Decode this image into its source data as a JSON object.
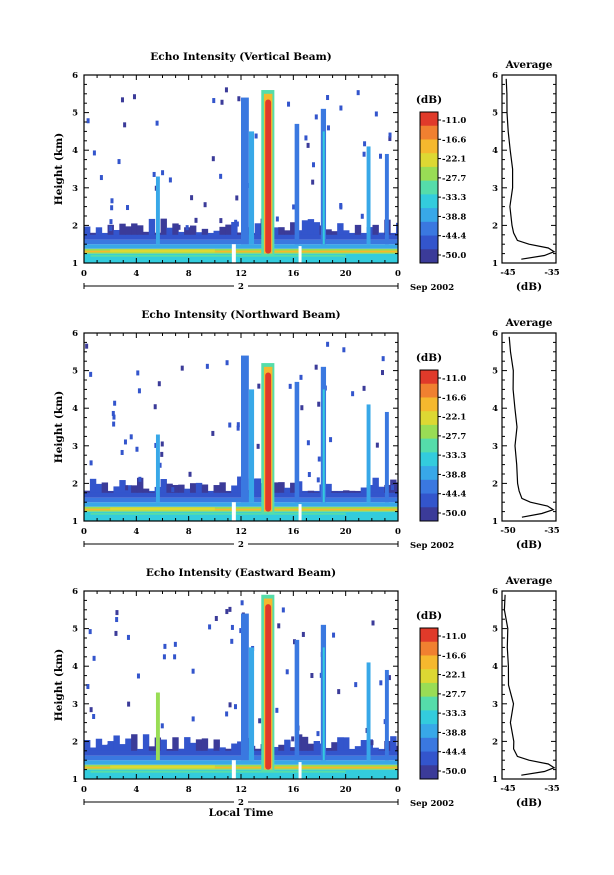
{
  "chart_data": [
    {
      "type": "heatmap",
      "title": "Echo Intensity (Vertical Beam)",
      "ylabel": "Height (km)",
      "xlabel": "",
      "x_ticks": [
        "0",
        "4",
        "8",
        "12",
        "16",
        "20",
        "0"
      ],
      "y_ticks": [
        "1",
        "2",
        "3",
        "4",
        "5",
        "6"
      ],
      "xlim": [
        0,
        24
      ],
      "ylim": [
        1,
        6
      ],
      "date_day": "2",
      "date_month_year": "Sep 2002",
      "colorbar": {
        "unit": "(dB)",
        "labels": [
          "-11.0",
          "-16.6",
          "-22.1",
          "-27.7",
          "-33.3",
          "-38.8",
          "-44.4",
          "-50.0"
        ]
      },
      "profile": {
        "title": "Average",
        "xlabel": "(dB)",
        "x_ticks": [
          "-45",
          "-35"
        ],
        "xlim": [
          -47,
          -33
        ],
        "heights": [
          1.1,
          1.2,
          1.3,
          1.4,
          1.5,
          1.6,
          1.8,
          2.0,
          2.5,
          3.0,
          3.5,
          4.0,
          4.5,
          5.0,
          5.5,
          5.9
        ],
        "values": [
          -42,
          -36,
          -33.5,
          -35,
          -40,
          -43,
          -44,
          -44.5,
          -44.5,
          -44.5,
          -44.8,
          -45,
          -45.2,
          -45.5,
          -45.8,
          -46
        ]
      }
    },
    {
      "type": "heatmap",
      "title": "Echo Intensity (Northward Beam)",
      "ylabel": "Height (km)",
      "xlabel": "",
      "x_ticks": [
        "0",
        "4",
        "8",
        "12",
        "16",
        "20",
        "0"
      ],
      "y_ticks": [
        "1",
        "2",
        "3",
        "4",
        "5",
        "6"
      ],
      "xlim": [
        0,
        24
      ],
      "ylim": [
        1,
        6
      ],
      "date_day": "2",
      "date_month_year": "Sep 2002",
      "colorbar": {
        "unit": "(dB)",
        "labels": [
          "-11.0",
          "-16.6",
          "-22.1",
          "-27.7",
          "-33.3",
          "-38.8",
          "-44.4",
          "-50.0"
        ]
      },
      "profile": {
        "title": "Average",
        "xlabel": "(dB)",
        "x_ticks": [
          "-50",
          "-35"
        ],
        "xlim": [
          -52,
          -33
        ],
        "heights": [
          1.1,
          1.2,
          1.3,
          1.4,
          1.5,
          1.6,
          1.8,
          2.0,
          2.5,
          3.0,
          3.5,
          4.0,
          4.5,
          5.0,
          5.5,
          5.9
        ],
        "values": [
          -45,
          -38,
          -34,
          -36,
          -42,
          -45,
          -46,
          -46.5,
          -47,
          -47,
          -47.2,
          -47.5,
          -47.8,
          -48,
          -48.5,
          -49
        ]
      }
    },
    {
      "type": "heatmap",
      "title": "Echo Intensity (Eastward Beam)",
      "ylabel": "Height (km)",
      "xlabel": "Local Time",
      "x_ticks": [
        "0",
        "4",
        "8",
        "12",
        "16",
        "20",
        "0"
      ],
      "y_ticks": [
        "1",
        "2",
        "3",
        "4",
        "5",
        "6"
      ],
      "xlim": [
        0,
        24
      ],
      "ylim": [
        1,
        6
      ],
      "date_day": "2",
      "date_month_year": "Sep 2002",
      "colorbar": {
        "unit": "(dB)",
        "labels": [
          "-11.0",
          "-16.6",
          "-22.1",
          "-27.7",
          "-33.3",
          "-38.8",
          "-44.4",
          "-50.0"
        ]
      },
      "profile": {
        "title": "Average",
        "xlabel": "(dB)",
        "x_ticks": [
          "-45",
          "-35"
        ],
        "xlim": [
          -47,
          -33
        ],
        "heights": [
          1.1,
          1.2,
          1.3,
          1.4,
          1.5,
          1.6,
          1.8,
          2.0,
          2.5,
          3.0,
          3.5,
          4.0,
          4.5,
          5.0,
          5.5,
          5.9
        ],
        "values": [
          -42,
          -36,
          -33.5,
          -35,
          -40,
          -43,
          -44,
          -44.5,
          -44.5,
          -44.5,
          -44.8,
          -45,
          -45.2,
          -45.5,
          -45.8,
          -46
        ]
      }
    }
  ],
  "colors": {
    "scale": [
      "#3b3b99",
      "#3355cc",
      "#3a78e0",
      "#38a8e8",
      "#33ccdd",
      "#55ddaa",
      "#99dd55",
      "#ddd833",
      "#f5b82e",
      "#f08030",
      "#e03a2a"
    ]
  }
}
